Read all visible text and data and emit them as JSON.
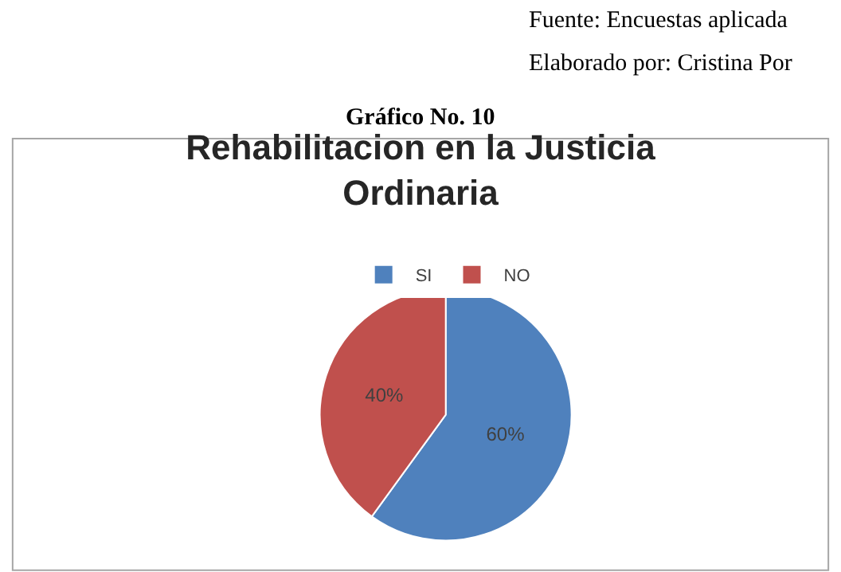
{
  "chart_data": {
    "type": "pie",
    "title": "Rehabilitacion en la Justicia Ordinaria",
    "categories": [
      "SI",
      "NO"
    ],
    "values": [
      60,
      40
    ],
    "colors": [
      "#4f81bd",
      "#c0504d"
    ],
    "value_labels": [
      "60%",
      "40%"
    ],
    "legend": "top",
    "annotations": [
      "Fuente: Encuestas aplicada",
      "Elaborado por: Cristina Por",
      "Gráfico No. 10"
    ]
  }
}
